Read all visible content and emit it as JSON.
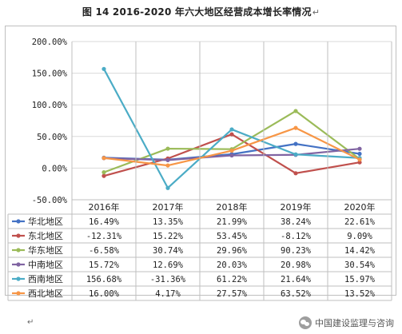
{
  "title": "图 14   2016-2020 年六大地区经营成本增长率情况",
  "title_mark": "↵",
  "bottom_mark": "↵",
  "watermark": {
    "text": "中国建设监理与咨询",
    "icon": "wechat-icon"
  },
  "chart_data": {
    "type": "line",
    "title": "",
    "xlabel": "",
    "ylabel": "",
    "ylim": [
      -50,
      200
    ],
    "yticks": [
      -50,
      0,
      50,
      100,
      150,
      200
    ],
    "ytick_labels": [
      "-50.00%",
      "0.00%",
      "50.00%",
      "100.00%",
      "150.00%",
      "200.00%"
    ],
    "grid": true,
    "legend": "data-table-left",
    "categories": [
      "2016年",
      "2017年",
      "2018年",
      "2019年",
      "2020年"
    ],
    "series": [
      {
        "name": "华北地区",
        "color": "#4472c4",
        "values": [
          16.49,
          13.35,
          21.99,
          38.24,
          22.61
        ],
        "labels": [
          "16.49%",
          "13.35%",
          "21.99%",
          "38.24%",
          "22.61%"
        ]
      },
      {
        "name": "东北地区",
        "color": "#c0504d",
        "values": [
          -12.31,
          15.22,
          53.45,
          -8.12,
          9.09
        ],
        "labels": [
          "-12.31%",
          "15.22%",
          "53.45%",
          "-8.12%",
          "9.09%"
        ]
      },
      {
        "name": "华东地区",
        "color": "#9bbb59",
        "values": [
          -6.58,
          30.74,
          29.96,
          90.23,
          14.42
        ],
        "labels": [
          "-6.58%",
          "30.74%",
          "29.96%",
          "90.23%",
          "14.42%"
        ]
      },
      {
        "name": "中南地区",
        "color": "#8064a2",
        "values": [
          15.72,
          12.69,
          20.03,
          20.98,
          30.54
        ],
        "labels": [
          "15.72%",
          "12.69%",
          "20.03%",
          "20.98%",
          "30.54%"
        ]
      },
      {
        "name": "西南地区",
        "color": "#4bacc6",
        "values": [
          156.68,
          -31.36,
          61.22,
          21.64,
          15.97
        ],
        "labels": [
          "156.68%",
          "-31.36%",
          "61.22%",
          "21.64%",
          "15.97%"
        ]
      },
      {
        "name": "西北地区",
        "color": "#f79646",
        "values": [
          16.0,
          4.17,
          27.57,
          63.52,
          13.52
        ],
        "labels": [
          "16.00%",
          "4.17%",
          "27.57%",
          "63.52%",
          "13.52%"
        ]
      }
    ]
  }
}
